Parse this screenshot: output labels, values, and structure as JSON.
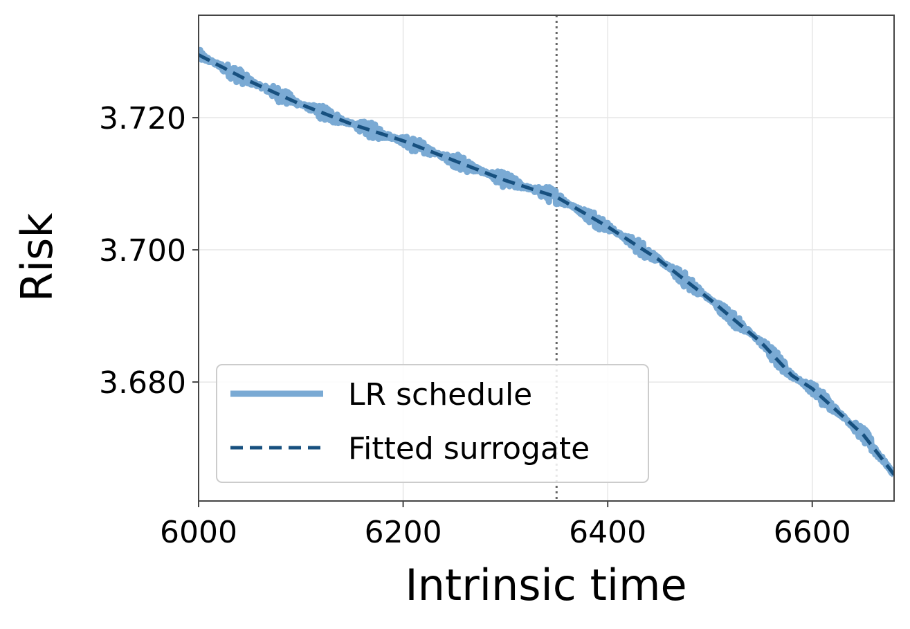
{
  "chart_data": {
    "type": "line",
    "xlabel": "Intrinsic time",
    "ylabel": "Risk",
    "xlim": [
      6000,
      6680
    ],
    "ylim": [
      3.662,
      3.7355
    ],
    "x_ticks": [
      6000,
      6200,
      6400,
      6600
    ],
    "y_ticks": [
      3.68,
      3.7,
      3.72
    ],
    "x_tick_labels": [
      "6000",
      "6200",
      "6400",
      "6600"
    ],
    "y_tick_labels": [
      "3.680",
      "3.700",
      "3.720"
    ],
    "grid": true,
    "legend_position": "lower-left",
    "vline_x": 6350,
    "series": [
      {
        "name": "LR schedule",
        "style": "solid-thick",
        "color": "#7aaad4",
        "noise_amplitude": 0.0012,
        "x": [
          6000,
          6050,
          6100,
          6150,
          6200,
          6250,
          6300,
          6350,
          6400,
          6450,
          6500,
          6550,
          6580,
          6600,
          6650,
          6680
        ],
        "y": [
          3.7295,
          3.7255,
          3.722,
          3.719,
          3.7165,
          3.7135,
          3.7105,
          3.708,
          3.7035,
          3.6985,
          3.6925,
          3.686,
          3.681,
          3.679,
          3.672,
          3.666
        ]
      },
      {
        "name": "Fitted surrogate",
        "style": "dashed",
        "color": "#17507f",
        "x": [
          6000,
          6050,
          6100,
          6150,
          6200,
          6250,
          6300,
          6350,
          6400,
          6450,
          6500,
          6550,
          6580,
          6600,
          6650,
          6680
        ],
        "y": [
          3.7295,
          3.7255,
          3.722,
          3.719,
          3.7165,
          3.7135,
          3.7105,
          3.708,
          3.7035,
          3.6985,
          3.6925,
          3.686,
          3.681,
          3.679,
          3.672,
          3.666
        ]
      }
    ]
  }
}
